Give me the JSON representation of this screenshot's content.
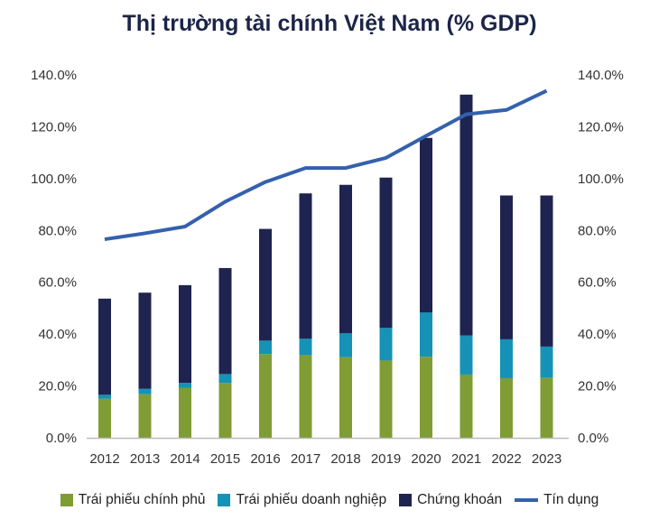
{
  "chart_data": {
    "type": "bar",
    "title": "Thị trường tài chính Việt Nam (% GDP)",
    "categories": [
      "2012",
      "2013",
      "2014",
      "2015",
      "2016",
      "2017",
      "2018",
      "2019",
      "2020",
      "2021",
      "2022",
      "2023"
    ],
    "series": [
      {
        "name": "Trái phiếu chính phủ",
        "kind": "stacked-bar",
        "color": "#7f9c35",
        "values": [
          15.1,
          16.8,
          19.2,
          21.2,
          32.3,
          31.9,
          31.1,
          29.8,
          31.3,
          24.4,
          23.0,
          23.2
        ]
      },
      {
        "name": "Trái phiếu doanh nghiệp",
        "kind": "stacked-bar",
        "color": "#1592b5",
        "values": [
          1.5,
          2.1,
          2.0,
          3.4,
          5.2,
          6.4,
          9.2,
          12.6,
          17.1,
          15.1,
          15.0,
          12.0
        ]
      },
      {
        "name": "Chứng khoán",
        "kind": "stacked-bar",
        "color": "#1f2350",
        "values": [
          37.1,
          37.1,
          37.7,
          40.9,
          43.1,
          56.0,
          57.3,
          58.0,
          67.3,
          92.9,
          55.5,
          58.3
        ]
      },
      {
        "name": "Tín dụng",
        "kind": "line",
        "color": "#3461ad",
        "values": [
          76.6,
          78.9,
          81.5,
          91.1,
          98.7,
          104.1,
          104.1,
          108.0,
          116.5,
          124.8,
          126.5,
          133.9
        ]
      }
    ],
    "ylim": [
      0,
      140
    ],
    "yticks": [
      "0.0%",
      "20.0%",
      "40.0%",
      "60.0%",
      "80.0%",
      "100.0%",
      "120.0%",
      "140.0%"
    ],
    "y2ticks": [
      "0.0%",
      "20.0%",
      "40.0%",
      "60.0%",
      "80.0%",
      "100.0%",
      "120.0%",
      "140.0%"
    ],
    "xlabel": "",
    "ylabel": "",
    "grid": false,
    "legend_position": "bottom"
  }
}
